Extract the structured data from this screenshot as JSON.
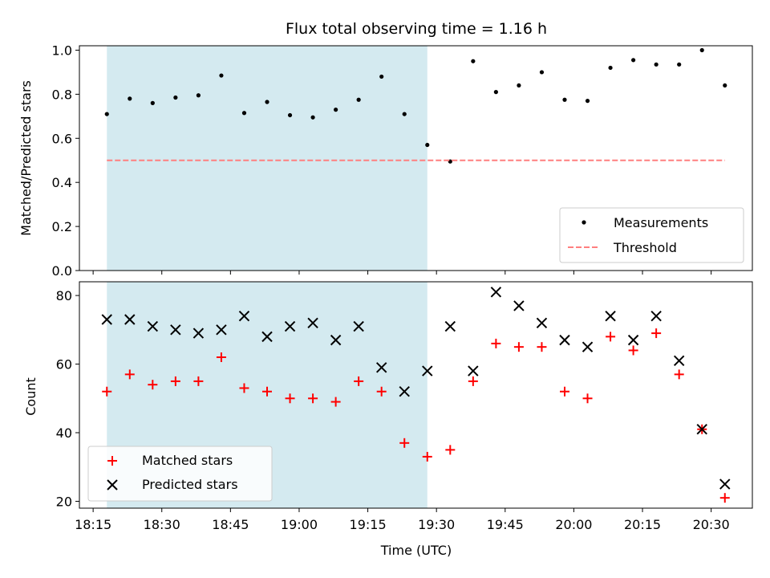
{
  "chart_data": [
    {
      "type": "scatter",
      "title": "Flux total observing time = 1.16 h",
      "xlabel": "",
      "ylabel": "Matched/Predicted stars",
      "ylim": [
        0,
        1.02
      ],
      "yticks": [
        "0.0",
        "0.2",
        "0.4",
        "0.6",
        "0.8",
        "1.0"
      ],
      "x_range": [
        "18:12",
        "20:39"
      ],
      "shaded_span": [
        "18:18",
        "19:28"
      ],
      "shaded_color": "#d4eaf0",
      "series": [
        {
          "name": "Measurements",
          "marker": "dot",
          "color": "#000000",
          "x": [
            "18:18",
            "18:23",
            "18:28",
            "18:33",
            "18:38",
            "18:43",
            "18:48",
            "18:53",
            "18:58",
            "19:03",
            "19:08",
            "19:13",
            "19:18",
            "19:23",
            "19:28",
            "19:33",
            "19:38",
            "19:43",
            "19:48",
            "19:53",
            "19:58",
            "20:03",
            "20:08",
            "20:13",
            "20:18",
            "20:23",
            "20:28",
            "20:33"
          ],
          "y": [
            0.71,
            0.78,
            0.76,
            0.785,
            0.795,
            0.885,
            0.715,
            0.765,
            0.705,
            0.695,
            0.73,
            0.775,
            0.88,
            0.71,
            0.57,
            0.495,
            0.95,
            0.81,
            0.84,
            0.9,
            0.775,
            0.77,
            0.92,
            0.955,
            0.935,
            0.935,
            1.0,
            0.84
          ]
        },
        {
          "name": "Threshold",
          "type": "line",
          "style": "dashed",
          "color": "#ff7f7f",
          "x": [
            "18:18",
            "20:33"
          ],
          "y": [
            0.5,
            0.5
          ]
        }
      ],
      "legend": {
        "placement": "lower-right",
        "entries": [
          "Measurements",
          "Threshold"
        ]
      }
    },
    {
      "type": "scatter",
      "title": "",
      "xlabel": "Time (UTC)",
      "ylabel": "Count",
      "ylim": [
        18,
        84
      ],
      "yticks": [
        "20",
        "40",
        "60",
        "80"
      ],
      "xticks": [
        "18:15",
        "18:30",
        "18:45",
        "19:00",
        "19:15",
        "19:30",
        "19:45",
        "20:00",
        "20:15",
        "20:30"
      ],
      "x_range": [
        "18:12",
        "20:39"
      ],
      "shaded_span": [
        "18:18",
        "19:28"
      ],
      "shaded_color": "#d4eaf0",
      "series": [
        {
          "name": "Matched stars",
          "marker": "plus",
          "color": "#ff0000",
          "x": [
            "18:18",
            "18:23",
            "18:28",
            "18:33",
            "18:38",
            "18:43",
            "18:48",
            "18:53",
            "18:58",
            "19:03",
            "19:08",
            "19:13",
            "19:18",
            "19:23",
            "19:28",
            "19:33",
            "19:38",
            "19:43",
            "19:48",
            "19:53",
            "19:58",
            "20:03",
            "20:08",
            "20:13",
            "20:18",
            "20:23",
            "20:28",
            "20:33"
          ],
          "y": [
            52,
            57,
            54,
            55,
            55,
            62,
            53,
            52,
            50,
            50,
            49,
            55,
            52,
            37,
            33,
            35,
            55,
            66,
            65,
            65,
            52,
            50,
            68,
            64,
            69,
            57,
            41,
            21
          ]
        },
        {
          "name": "Predicted stars",
          "marker": "x",
          "color": "#000000",
          "x": [
            "18:18",
            "18:23",
            "18:28",
            "18:33",
            "18:38",
            "18:43",
            "18:48",
            "18:53",
            "18:58",
            "19:03",
            "19:08",
            "19:13",
            "19:18",
            "19:23",
            "19:28",
            "19:33",
            "19:38",
            "19:43",
            "19:48",
            "19:53",
            "19:58",
            "20:03",
            "20:08",
            "20:13",
            "20:18",
            "20:23",
            "20:28",
            "20:33"
          ],
          "y": [
            73,
            73,
            71,
            70,
            69,
            70,
            74,
            68,
            71,
            72,
            67,
            71,
            59,
            52,
            58,
            71,
            58,
            81,
            77,
            72,
            67,
            65,
            74,
            67,
            74,
            61,
            41,
            25
          ]
        }
      ],
      "legend": {
        "placement": "lower-left",
        "entries": [
          "Matched stars",
          "Predicted stars"
        ]
      }
    }
  ]
}
